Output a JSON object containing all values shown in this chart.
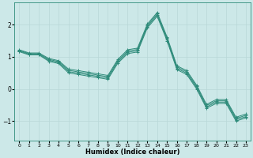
{
  "xlabel": "Humidex (Indice chaleur)",
  "ylabel": "",
  "bg_color": "#cce8e8",
  "grid_color": "#b8d8d8",
  "line_color": "#2e8b7a",
  "xlim": [
    -0.5,
    23.5
  ],
  "ylim": [
    -1.6,
    2.7
  ],
  "yticks": [
    -1,
    0,
    1,
    2
  ],
  "xticks": [
    0,
    1,
    2,
    3,
    4,
    5,
    6,
    7,
    8,
    9,
    10,
    11,
    12,
    13,
    14,
    15,
    16,
    17,
    18,
    19,
    20,
    21,
    22,
    23
  ],
  "series": [
    [
      1.22,
      1.12,
      1.12,
      0.95,
      0.88,
      0.62,
      0.57,
      0.52,
      0.47,
      0.42,
      0.92,
      1.22,
      1.27,
      2.02,
      2.38,
      1.62,
      0.72,
      0.57,
      0.12,
      -0.48,
      -0.33,
      -0.33,
      -0.88,
      -0.78
    ],
    [
      1.2,
      1.1,
      1.1,
      0.92,
      0.85,
      0.58,
      0.53,
      0.48,
      0.43,
      0.38,
      0.88,
      1.18,
      1.23,
      1.98,
      2.34,
      1.58,
      0.68,
      0.53,
      0.08,
      -0.52,
      -0.37,
      -0.37,
      -0.92,
      -0.82
    ],
    [
      1.18,
      1.08,
      1.08,
      0.89,
      0.82,
      0.54,
      0.49,
      0.44,
      0.39,
      0.34,
      0.84,
      1.14,
      1.19,
      1.94,
      2.3,
      1.54,
      0.64,
      0.49,
      0.04,
      -0.56,
      -0.41,
      -0.41,
      -0.96,
      -0.86
    ],
    [
      1.16,
      1.06,
      1.06,
      0.86,
      0.79,
      0.5,
      0.45,
      0.4,
      0.35,
      0.3,
      0.8,
      1.1,
      1.15,
      1.9,
      2.26,
      1.5,
      0.6,
      0.45,
      0.0,
      -0.6,
      -0.45,
      -0.45,
      -1.0,
      -0.9
    ]
  ],
  "figsize": [
    3.2,
    2.0
  ],
  "dpi": 100
}
